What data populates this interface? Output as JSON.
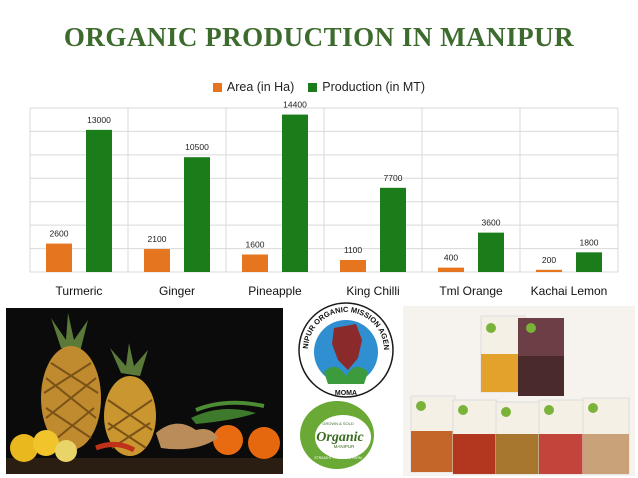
{
  "title": "ORGANIC PRODUCTION IN MANIPUR",
  "colors": {
    "title": "#3d6b2e",
    "area": "#e5751f",
    "production": "#1a7d1a",
    "grid": "#d9d9d9"
  },
  "chart_data": {
    "type": "bar",
    "categories": [
      "Turmeric",
      "Ginger",
      "Pineapple",
      "King Chilli",
      "Tml Orange",
      "Kachai Lemon"
    ],
    "series": [
      {
        "name": "Area (in Ha)",
        "values": [
          2600,
          2100,
          1600,
          1100,
          400,
          200
        ]
      },
      {
        "name": "Production (in MT)",
        "values": [
          13000,
          10500,
          14400,
          7700,
          3600,
          1800
        ]
      }
    ],
    "ylim": [
      0,
      15000
    ],
    "grid": true,
    "legend": "top-center"
  },
  "images": {
    "left_photo": "pineapples, citrus, ginger and chillies on dark background",
    "moma_logo_text": "MANIPUR ORGANIC MISSION AGENCY",
    "moma_abbrev": "MOMA",
    "organic_logo_small": "GROWN & SOLD",
    "organic_logo_main": "Organic",
    "organic_logo_sub": "MANIPUR",
    "organic_logo_tagline": "STRAIGHT FROM THE FARM",
    "products": "packaged organic spice products"
  }
}
